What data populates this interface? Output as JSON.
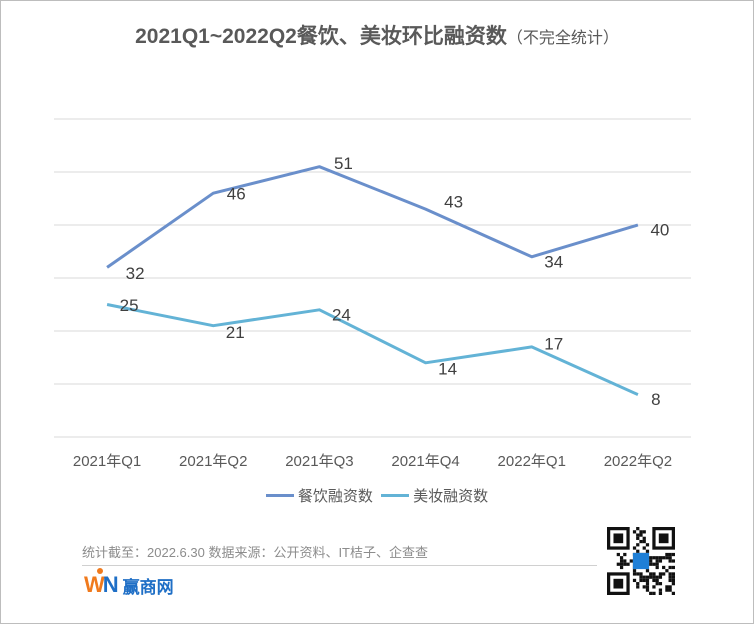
{
  "title": {
    "main": "2021Q1~2022Q2餐饮、美妆环比融资数",
    "sub": "（不完全统计）"
  },
  "legend": {
    "series1": "餐饮融资数",
    "series2": "美妆融资数"
  },
  "footer": {
    "note": "统计截至：2022.6.30  数据来源：公开资料、IT桔子、企查查",
    "logo_mark_w": "W",
    "logo_mark_n": "N",
    "logo_text": "赢商网"
  },
  "colors": {
    "series1": "#6a8fcb",
    "series2": "#63b3d6",
    "grid": "#d9d9d9",
    "text": "#595959"
  },
  "chart_data": {
    "type": "line",
    "title": "2021Q1~2022Q2餐饮、美妆环比融资数（不完全统计）",
    "xlabel": "",
    "ylabel": "",
    "categories": [
      "2021年Q1",
      "2021年Q2",
      "2021年Q3",
      "2021年Q4",
      "2022年Q1",
      "2022年Q2"
    ],
    "series": [
      {
        "name": "餐饮融资数",
        "values": [
          32,
          46,
          51,
          43,
          34,
          40
        ]
      },
      {
        "name": "美妆融资数",
        "values": [
          25,
          21,
          24,
          14,
          17,
          8
        ]
      }
    ],
    "ylim": [
      0,
      60
    ],
    "grid": true,
    "y_axis_visible": false,
    "legend_position": "bottom",
    "data_labels": true
  }
}
